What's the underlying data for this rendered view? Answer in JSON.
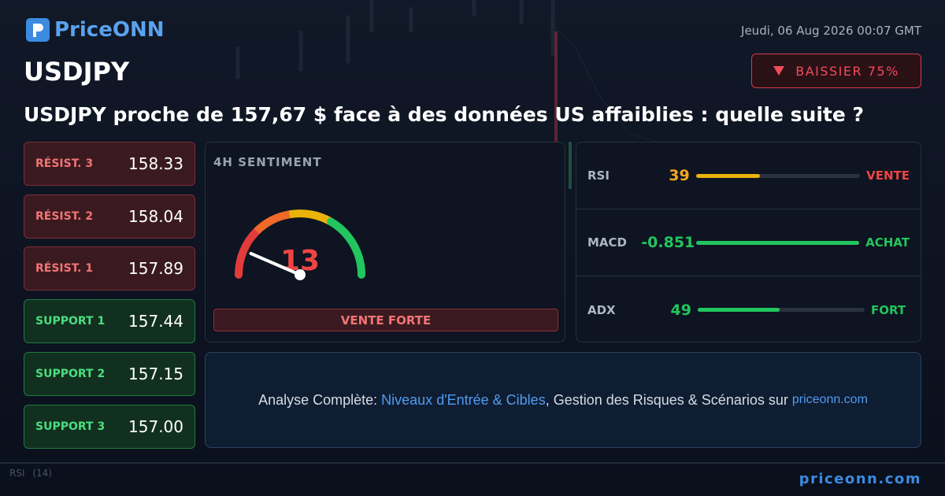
{
  "header": {
    "logo": "PriceONN",
    "date": "Jeudi, 06 Aug 2026 00:07 GMT",
    "symbol": "USDJPY",
    "badge": "BAISSIER 75%",
    "headline": "USDJPY proche de 157,67 $ face à des données US affaiblies : quelle suite ?"
  },
  "levels": [
    {
      "label": "RÉSIST. 3",
      "value": "158.33"
    },
    {
      "label": "RÉSIST. 2",
      "value": "158.04"
    },
    {
      "label": "RÉSIST. 1",
      "value": "157.89"
    },
    {
      "label": "SUPPORT 1",
      "value": "157.44"
    },
    {
      "label": "SUPPORT 2",
      "value": "157.15"
    },
    {
      "label": "SUPPORT 3",
      "value": "157.00"
    }
  ],
  "sentiment": {
    "title": "4H SENTIMENT",
    "score": 13,
    "verdict": "VENTE FORTE"
  },
  "indicators": [
    {
      "name": "RSI",
      "value": 39,
      "signal": "VENTE"
    },
    {
      "name": "MACD",
      "value": -0.851,
      "signal": "ACHAT"
    },
    {
      "name": "ADX",
      "value": 49,
      "signal": "FORT"
    }
  ],
  "cta": {
    "prefix": "Analyse Complète:",
    "link": "Niveaux d'Entrée & Cibles",
    "middle": ", Gestion des Risques & Scénarios sur",
    "site": "priceonn.com"
  },
  "background": {
    "rsi_label": "RSI",
    "rsi_period": "(14)"
  },
  "footer": {
    "site": "priceonn.com"
  }
}
